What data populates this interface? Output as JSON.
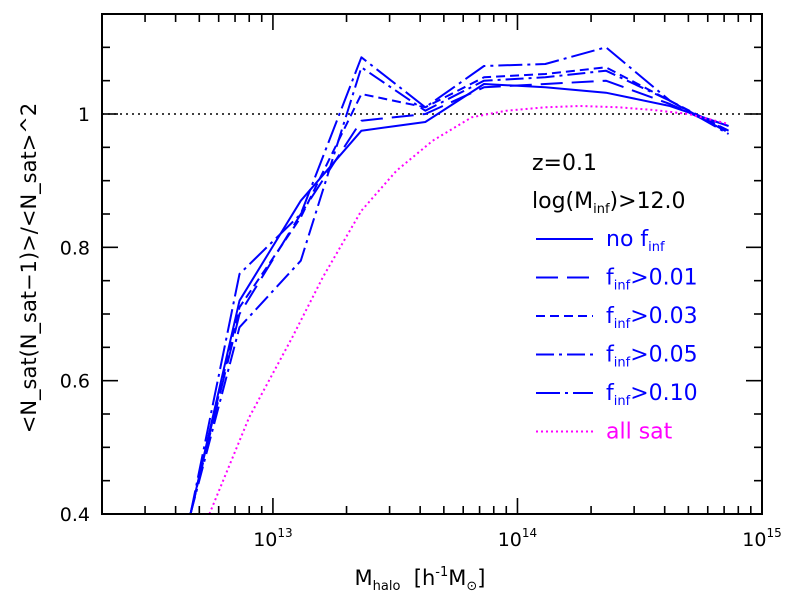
{
  "chart_data": {
    "type": "line",
    "xscale": "log",
    "xlim": [
      2000000000000.0,
      1000000000000000.0
    ],
    "ylim": [
      0.4,
      1.15
    ],
    "xticks": [
      {
        "value": 10000000000000.0,
        "base": "10",
        "exp": "13"
      },
      {
        "value": 100000000000000.0,
        "base": "10",
        "exp": "14"
      },
      {
        "value": 1000000000000000.0,
        "base": "10",
        "exp": "15"
      }
    ],
    "yticks": [
      {
        "value": 0.4,
        "label": "0.4"
      },
      {
        "value": 0.6,
        "label": "0.6"
      },
      {
        "value": 0.8,
        "label": "0.8"
      },
      {
        "value": 1.0,
        "label": "1"
      }
    ],
    "xlabel": {
      "main": "M",
      "sub": "halo",
      "rest": "  [h",
      "sup": "-1",
      "unit": "M",
      "unit_sub": "⊙",
      "close": "]"
    },
    "ylabel": "<N_sat(N_sat−1)>/<N_sat>^2",
    "reference_line": {
      "y": 1.0,
      "style": "dotted",
      "color": "#000000"
    },
    "annotations": {
      "redshift": "z=0.1",
      "cut_main": "log(M",
      "cut_sub": "inf",
      "cut_rest": ")>12.0"
    },
    "series": [
      {
        "label_main": "no f",
        "label_sub": "inf",
        "label_rest": "",
        "color": "#0000ff",
        "dash": "",
        "x": [
          4600000000000.0,
          7300000000000.0,
          13000000000000.0,
          23000000000000.0,
          42000000000000.0,
          73000000000000.0,
          130000000000000.0,
          230000000000000.0,
          420000000000000.0,
          730000000000000.0
        ],
        "y": [
          0.4,
          0.72,
          0.87,
          0.975,
          0.988,
          1.045,
          1.04,
          1.032,
          1.012,
          0.982
        ]
      },
      {
        "label_main": "f",
        "label_sub": "inf",
        "label_rest": ">0.01",
        "color": "#0000ff",
        "dash": "22,9",
        "x": [
          4600000000000.0,
          7300000000000.0,
          13000000000000.0,
          23000000000000.0,
          42000000000000.0,
          73000000000000.0,
          130000000000000.0,
          230000000000000.0,
          420000000000000.0,
          730000000000000.0
        ],
        "y": [
          0.4,
          0.7,
          0.85,
          0.99,
          1.0,
          1.04,
          1.045,
          1.05,
          1.015,
          0.975
        ]
      },
      {
        "label_main": "f",
        "label_sub": "inf",
        "label_rest": ">0.03",
        "color": "#0000ff",
        "dash": "9,5",
        "x": [
          4600000000000.0,
          7300000000000.0,
          13000000000000.0,
          23000000000000.0,
          42000000000000.0,
          73000000000000.0,
          130000000000000.0,
          230000000000000.0,
          420000000000000.0,
          730000000000000.0
        ],
        "y": [
          0.4,
          0.71,
          0.845,
          1.03,
          1.01,
          1.055,
          1.06,
          1.07,
          1.02,
          0.975
        ]
      },
      {
        "label_main": "f",
        "label_sub": "inf",
        "label_rest": ">0.05",
        "color": "#0000ff",
        "dash": "18,5,3,5",
        "x": [
          4600000000000.0,
          7300000000000.0,
          13000000000000.0,
          23000000000000.0,
          42000000000000.0,
          73000000000000.0,
          130000000000000.0,
          230000000000000.0,
          420000000000000.0,
          730000000000000.0
        ],
        "y": [
          0.4,
          0.68,
          0.78,
          1.07,
          1.005,
          1.05,
          1.055,
          1.065,
          1.02,
          0.972
        ]
      },
      {
        "label_main": "f",
        "label_sub": "inf",
        "label_rest": ">0.10",
        "color": "#0000ff",
        "dash": "24,5,3,5",
        "x": [
          4600000000000.0,
          7300000000000.0,
          13000000000000.0,
          23000000000000.0,
          42000000000000.0,
          73000000000000.0,
          130000000000000.0,
          230000000000000.0,
          420000000000000.0,
          730000000000000.0
        ],
        "y": [
          0.4,
          0.76,
          0.85,
          1.085,
          1.01,
          1.072,
          1.075,
          1.1,
          1.02,
          0.97
        ]
      },
      {
        "label_main": "all sat",
        "label_sub": "",
        "label_rest": "",
        "color": "#ff00ff",
        "dash": "2,3",
        "x": [
          5500000000000.0,
          8000000000000.0,
          12000000000000.0,
          16000000000000.0,
          23000000000000.0,
          32000000000000.0,
          45000000000000.0,
          65000000000000.0,
          90000000000000.0,
          130000000000000.0,
          180000000000000.0,
          260000000000000.0,
          360000000000000.0,
          500000000000000.0,
          730000000000000.0
        ],
        "y": [
          0.4,
          0.545,
          0.665,
          0.755,
          0.855,
          0.915,
          0.96,
          0.995,
          1.005,
          1.01,
          1.012,
          1.01,
          1.006,
          1.0,
          0.985
        ]
      }
    ]
  }
}
